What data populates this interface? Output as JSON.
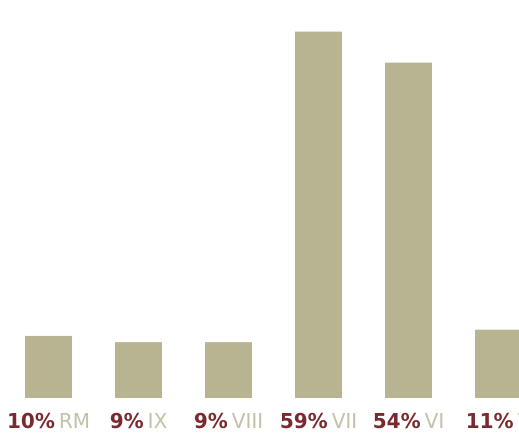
{
  "chart_data": {
    "type": "bar",
    "categories": [
      "RM",
      "IX",
      "VIII",
      "VII",
      "VI",
      "V"
    ],
    "values": [
      10,
      9,
      9,
      59,
      54,
      11
    ],
    "value_labels": [
      "10%",
      "9%",
      "9%",
      "59%",
      "54%",
      "11%"
    ],
    "title": "",
    "xlabel": "",
    "ylabel": "",
    "ylim": [
      0,
      62
    ],
    "grid": false,
    "legend": "none",
    "colors": {
      "bar": "#b8b390",
      "value_label": "#7a2a2e",
      "category_label": "#c5c0a8"
    }
  }
}
